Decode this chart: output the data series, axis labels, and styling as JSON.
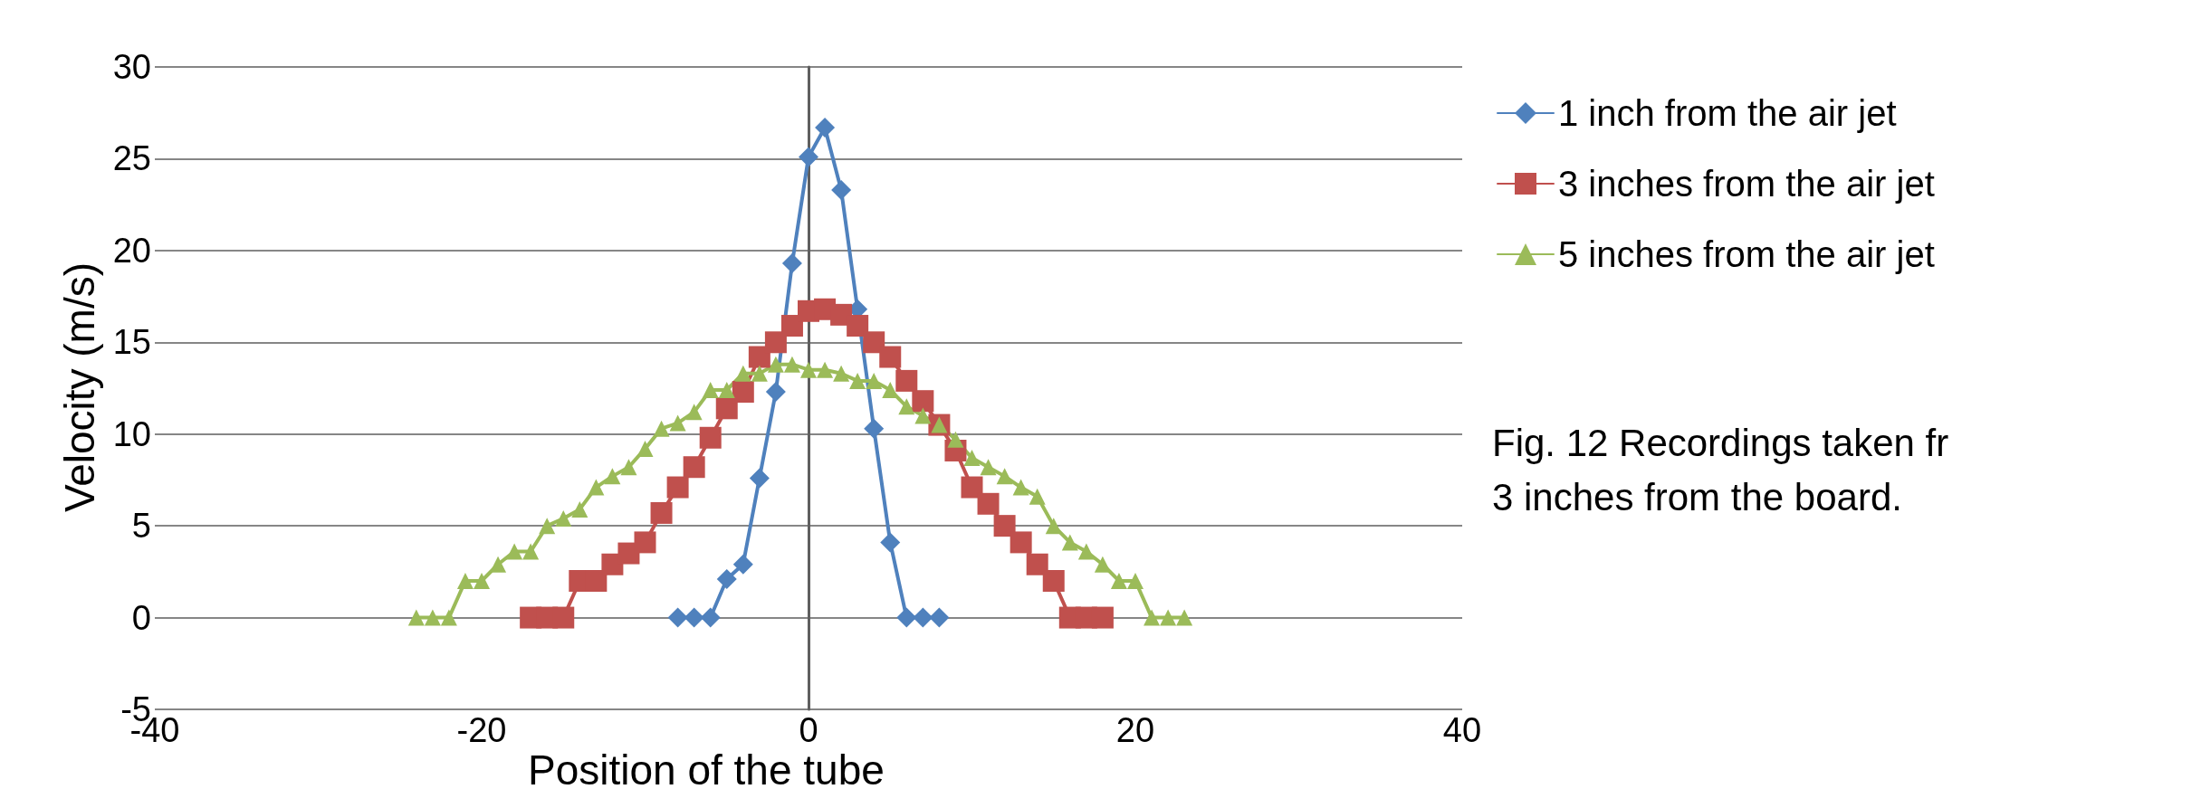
{
  "chart_data": {
    "type": "line",
    "xlabel": "Position of the tube",
    "ylabel": "Velocity (m/s)",
    "annotations": [
      "Fig. 12 Recordings taken fr",
      "3 inches from the board."
    ],
    "xlim": [
      -40,
      40
    ],
    "xticks": [
      -40,
      -20,
      0,
      20,
      40
    ],
    "ylim": [
      -5,
      30
    ],
    "yticks": [
      -5,
      0,
      5,
      10,
      15,
      20,
      25,
      30
    ],
    "grid": "y",
    "legend": "top right",
    "line_style": "solid",
    "series": [
      {
        "name": "1 inch from the air jet",
        "color": "#4f81bd",
        "marker": "diamond",
        "x": [
          -8,
          -7,
          -6,
          -5,
          -4,
          -3,
          -2,
          -1,
          0,
          1,
          2,
          3,
          4,
          5,
          6,
          7,
          8
        ],
        "values": [
          0,
          0,
          0,
          2.1,
          2.9,
          7.6,
          12.3,
          19.3,
          25.1,
          26.7,
          23.3,
          16.8,
          10.3,
          4.1,
          0,
          0,
          0
        ]
      },
      {
        "name": "3 inches from the air jet",
        "color": "#c0504d",
        "marker": "square",
        "x": [
          -17,
          -16,
          -15,
          -14,
          -13,
          -12,
          -11,
          -10,
          -9,
          -8,
          -7,
          -6,
          -5,
          -4,
          -3,
          -2,
          -1,
          0,
          1,
          2,
          3,
          4,
          5,
          6,
          7,
          8,
          9,
          10,
          11,
          12,
          13,
          14,
          15,
          16,
          17,
          18
        ],
        "values": [
          0,
          0,
          0,
          2.0,
          2.0,
          2.9,
          3.5,
          4.1,
          5.7,
          7.1,
          8.2,
          9.8,
          11.4,
          12.3,
          14.2,
          15.0,
          15.9,
          16.7,
          16.8,
          16.5,
          15.9,
          15.0,
          14.2,
          12.9,
          11.8,
          10.5,
          9.1,
          7.1,
          6.2,
          5.0,
          4.1,
          2.9,
          2.0,
          0,
          0,
          0
        ]
      },
      {
        "name": "5 inches from the air jet",
        "color": "#9bbb59",
        "marker": "triangle",
        "x": [
          -24,
          -23,
          -22,
          -21,
          -20,
          -19,
          -18,
          -17,
          -16,
          -15,
          -14,
          -13,
          -12,
          -11,
          -10,
          -9,
          -8,
          -7,
          -6,
          -5,
          -4,
          -3,
          -2,
          -1,
          0,
          1,
          2,
          3,
          4,
          5,
          6,
          7,
          8,
          9,
          10,
          11,
          12,
          13,
          14,
          15,
          16,
          17,
          18,
          19,
          20,
          21,
          22,
          23
        ],
        "values": [
          0,
          0,
          0,
          2.0,
          2.0,
          2.9,
          3.6,
          3.6,
          5.0,
          5.4,
          5.9,
          7.1,
          7.7,
          8.2,
          9.2,
          10.3,
          10.6,
          11.2,
          12.4,
          12.4,
          13.3,
          13.3,
          13.8,
          13.8,
          13.5,
          13.5,
          13.3,
          12.9,
          12.9,
          12.4,
          11.5,
          11.0,
          10.5,
          9.7,
          8.7,
          8.2,
          7.7,
          7.1,
          6.6,
          5.0,
          4.1,
          3.6,
          2.9,
          2.0,
          2.0,
          0,
          0,
          0
        ]
      }
    ]
  }
}
